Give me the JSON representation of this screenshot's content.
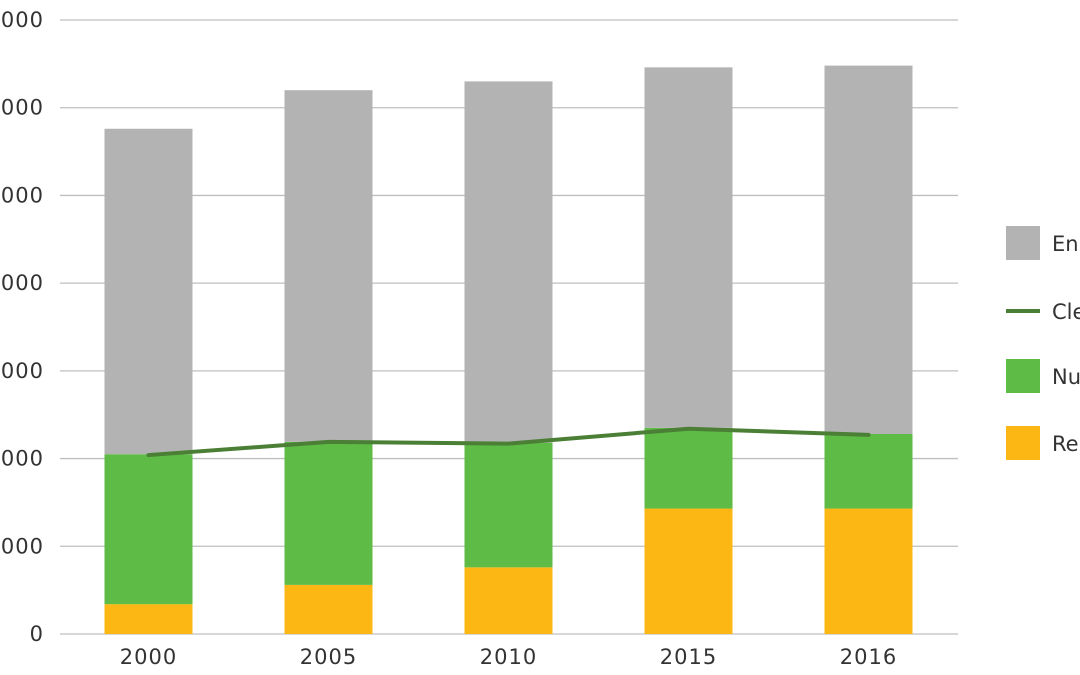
{
  "chart_data": {
    "type": "bar",
    "stacked": true,
    "categories": [
      "2000",
      "2005",
      "2010",
      "2015",
      "2016"
    ],
    "y_tick_labels": [
      "0",
      "000",
      "000",
      "000",
      "000",
      "000",
      "000",
      "000"
    ],
    "y_tick_values": [
      0,
      1000,
      2000,
      3000,
      4000,
      5000,
      6000,
      7000
    ],
    "ylim": [
      0,
      7000
    ],
    "grid": true,
    "legend_position": "right",
    "series": [
      {
        "name": "Re",
        "kind": "bar",
        "color": "#FDB714",
        "values": [
          340,
          560,
          760,
          1430,
          1430
        ]
      },
      {
        "name": "Nu",
        "kind": "bar",
        "color": "#5DBB46",
        "values": [
          1710,
          1630,
          1420,
          920,
          850
        ]
      },
      {
        "name": "En",
        "kind": "bar",
        "color": "#B3B3B3",
        "values": [
          3710,
          4010,
          4120,
          4110,
          4200
        ]
      },
      {
        "name": "Cle",
        "kind": "line",
        "color": "#4A7F35",
        "values": [
          2040,
          2190,
          2170,
          2340,
          2270
        ]
      }
    ],
    "legend": [
      {
        "label": "En",
        "series": 2,
        "swatch": "box"
      },
      {
        "label": "Cle",
        "series": 3,
        "swatch": "line"
      },
      {
        "label": "Nu",
        "series": 1,
        "swatch": "box"
      },
      {
        "label": "Re",
        "series": 0,
        "swatch": "box"
      }
    ]
  }
}
